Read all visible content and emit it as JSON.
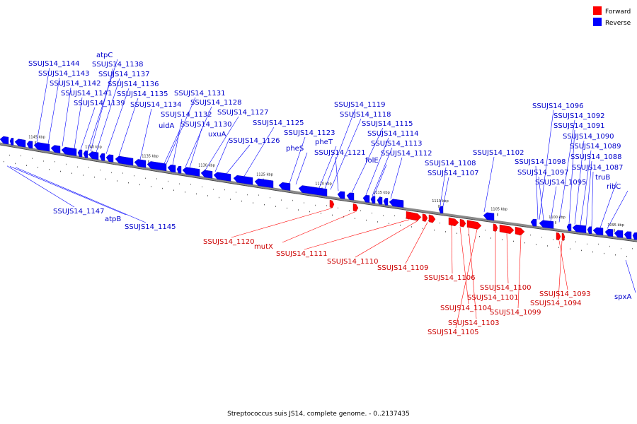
{
  "legend": [
    {
      "label": "Forward",
      "color": "#ff0000"
    },
    {
      "label": "Reverse",
      "color": "#0000ff"
    }
  ],
  "caption": "Streptococcus suis JS14, complete genome. - 0..2137435",
  "ticks": [
    "1145 kbp",
    "1140 kbp",
    "1135 kbp",
    "1130 kbp",
    "1125 kbp",
    "1120 kbp",
    "1115 kbp",
    "1110 kbp",
    "1105 kbp",
    "1100 kbp",
    "1095 kbp"
  ],
  "reverse_labels": [
    "atpC",
    "SSUJS14_1144",
    "SSUJS14_1138",
    "SSUJS14_1143",
    "SSUJS14_1137",
    "SSUJS14_1142",
    "SSUJS14_1136",
    "SSUJS14_1141",
    "SSUJS14_1135",
    "SSUJS14_1131",
    "SSUJS14_1139",
    "SSUJS14_1134",
    "SSUJS14_1128",
    "SSUJS14_1132",
    "SSUJS14_1127",
    "uidA",
    "SSUJS14_1130",
    "SSUJS14_1125",
    "uxuA",
    "SSUJS14_1126",
    "SSUJS14_1119",
    "SSUJS14_1118",
    "SSUJS14_1115",
    "SSUJS14_1123",
    "pheT",
    "pheS",
    "SSUJS14_1121",
    "SSUJS14_1114",
    "SSUJS14_1113",
    "folE",
    "SSUJS14_1112",
    "SSUJS14_1102",
    "SSUJS14_1108",
    "SSUJS14_1107",
    "SSUJS14_1096",
    "SSUJS14_1092",
    "SSUJS14_1091",
    "SSUJS14_1090",
    "SSUJS14_1089",
    "SSUJS14_1098",
    "SSUJS14_1088",
    "SSUJS14_1097",
    "SSUJS14_1087",
    "truB",
    "SSUJS14_1095",
    "ribC",
    "SSUJS14_1147",
    "atpB",
    "SSUJS14_1145",
    "spxA"
  ],
  "forward_labels": [
    "SSUJS14_1120",
    "mutX",
    "SSUJS14_1111",
    "SSUJS14_1110",
    "SSUJS14_1109",
    "SSUJS14_1106",
    "SSUJS14_1100",
    "SSUJS14_1101",
    "SSUJS14_1104",
    "SSUJS14_1099",
    "SSUJS14_1093",
    "SSUJS14_1094",
    "SSUJS14_1103",
    "SSUJS14_1105"
  ]
}
